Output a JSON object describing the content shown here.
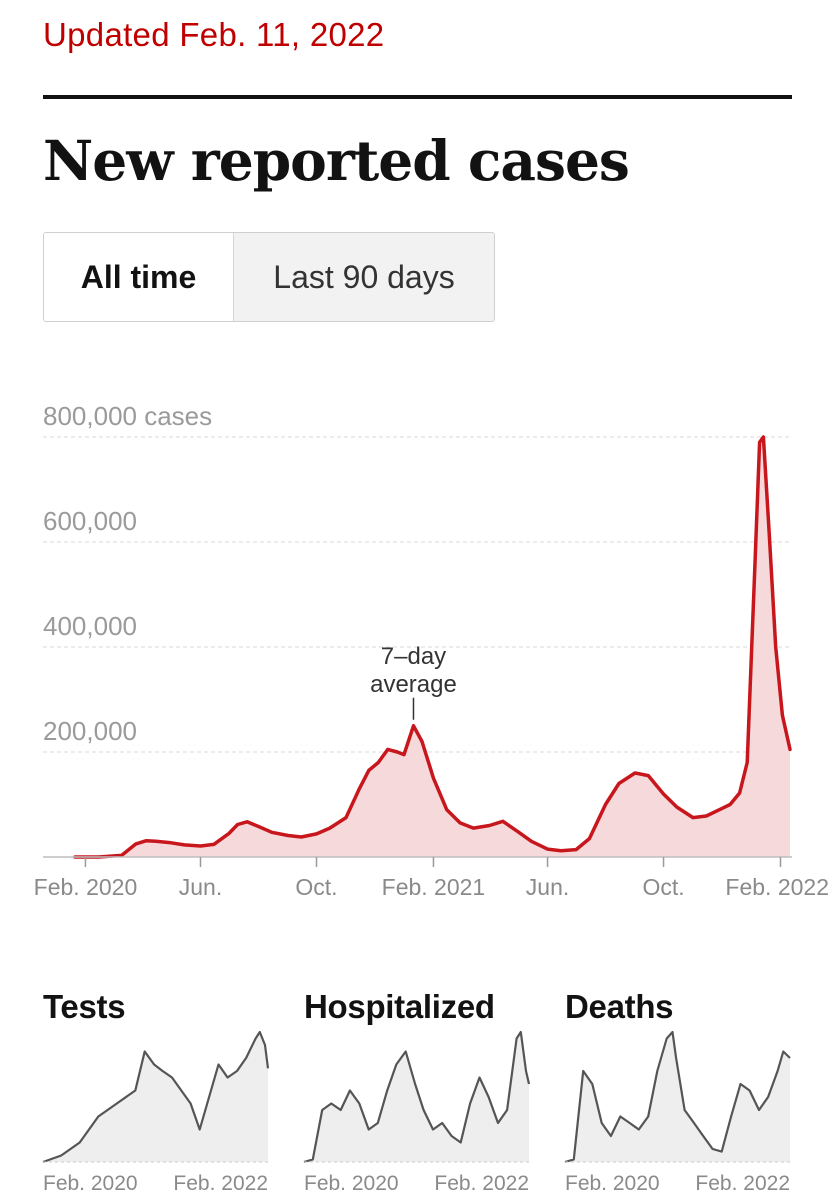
{
  "header": {
    "updated": "Updated Feb. 11, 2022",
    "title": "New reported cases"
  },
  "toggle": {
    "options": [
      {
        "label": "All time",
        "active": true
      },
      {
        "label": "Last 90 days",
        "active": false
      }
    ]
  },
  "colors": {
    "accent": "#c00000",
    "line": "#c8161d",
    "fill": "#f6d9da",
    "small_line": "#555555",
    "small_fill": "#eeeeee"
  },
  "chart_data": [
    {
      "type": "area",
      "y_unit_label": "800,000 cases",
      "y_ticks": [
        {
          "value": 200000,
          "label": "200,000"
        },
        {
          "value": 400000,
          "label": "400,000"
        },
        {
          "value": 600000,
          "label": "600,000"
        },
        {
          "value": 800000,
          "label": "800,000 cases"
        }
      ],
      "ylim": [
        0,
        800000
      ],
      "x_ticks": [
        {
          "date": "2020-02-01",
          "label": "Feb. 2020"
        },
        {
          "date": "2020-06-01",
          "label": "Jun."
        },
        {
          "date": "2020-10-01",
          "label": "Oct."
        },
        {
          "date": "2021-02-01",
          "label": "Feb. 2021"
        },
        {
          "date": "2021-06-01",
          "label": "Jun."
        },
        {
          "date": "2021-10-01",
          "label": "Oct."
        },
        {
          "date": "2022-02-01",
          "label": "Feb. 2022"
        }
      ],
      "annotation": {
        "line1": "7–day",
        "line2": "average",
        "date": "2021-01-11",
        "value": 250000
      },
      "grid": true,
      "series": [
        {
          "x": [
            "2020-01-21",
            "2020-02-15",
            "2020-03-10",
            "2020-03-25",
            "2020-04-05",
            "2020-04-15",
            "2020-05-01",
            "2020-05-15",
            "2020-06-01",
            "2020-06-15",
            "2020-07-01",
            "2020-07-10",
            "2020-07-20",
            "2020-08-01",
            "2020-08-15",
            "2020-09-01",
            "2020-09-15",
            "2020-10-01",
            "2020-10-15",
            "2020-11-01",
            "2020-11-15",
            "2020-11-25",
            "2020-12-05",
            "2020-12-15",
            "2020-12-25",
            "2021-01-01",
            "2021-01-11",
            "2021-01-20",
            "2021-02-01",
            "2021-02-15",
            "2021-03-01",
            "2021-03-15",
            "2021-04-01",
            "2021-04-15",
            "2021-05-01",
            "2021-05-15",
            "2021-06-01",
            "2021-06-15",
            "2021-07-01",
            "2021-07-15",
            "2021-08-01",
            "2021-08-15",
            "2021-09-01",
            "2021-09-15",
            "2021-10-01",
            "2021-10-15",
            "2021-11-01",
            "2021-11-15",
            "2021-12-01",
            "2021-12-10",
            "2021-12-20",
            "2021-12-28",
            "2022-01-05",
            "2022-01-10",
            "2022-01-14",
            "2022-01-20",
            "2022-01-27",
            "2022-02-03",
            "2022-02-11"
          ],
          "y": [
            0,
            0,
            3000,
            25000,
            31000,
            30000,
            27000,
            23000,
            21000,
            24000,
            45000,
            62000,
            67000,
            58000,
            47000,
            41000,
            38000,
            44000,
            55000,
            75000,
            130000,
            165000,
            180000,
            205000,
            200000,
            195000,
            250000,
            220000,
            150000,
            90000,
            65000,
            55000,
            60000,
            68000,
            48000,
            30000,
            15000,
            12000,
            14000,
            35000,
            100000,
            140000,
            160000,
            155000,
            120000,
            95000,
            75000,
            78000,
            92000,
            100000,
            122000,
            180000,
            550000,
            790000,
            800000,
            620000,
            400000,
            270000,
            205000
          ]
        }
      ]
    },
    {
      "type": "area",
      "title": "Tests",
      "x_ticks": [
        {
          "date": "2020-02-01",
          "label": "Feb. 2020"
        },
        {
          "date": "2022-02-01",
          "label": "Feb. 2022"
        }
      ],
      "x": [
        "2020-02-01",
        "2020-04-01",
        "2020-06-01",
        "2020-08-01",
        "2020-10-01",
        "2020-12-01",
        "2021-01-01",
        "2021-02-01",
        "2021-03-01",
        "2021-04-01",
        "2021-06-01",
        "2021-07-01",
        "2021-08-01",
        "2021-09-01",
        "2021-10-01",
        "2021-11-01",
        "2021-12-01",
        "2022-01-01",
        "2022-01-15",
        "2022-02-01",
        "2022-02-11"
      ],
      "values": [
        0,
        5,
        15,
        35,
        45,
        55,
        85,
        75,
        70,
        65,
        45,
        25,
        50,
        75,
        65,
        70,
        80,
        95,
        100,
        90,
        72
      ],
      "ylim": [
        0,
        100
      ]
    },
    {
      "type": "area",
      "title": "Hospitalized",
      "x_ticks": [
        {
          "date": "2020-02-01",
          "label": "Feb. 2020"
        },
        {
          "date": "2022-02-01",
          "label": "Feb. 2022"
        }
      ],
      "x": [
        "2020-02-01",
        "2020-03-01",
        "2020-04-01",
        "2020-05-01",
        "2020-06-01",
        "2020-07-01",
        "2020-08-01",
        "2020-09-01",
        "2020-10-01",
        "2020-11-01",
        "2020-12-01",
        "2021-01-01",
        "2021-02-01",
        "2021-03-01",
        "2021-04-01",
        "2021-05-01",
        "2021-06-01",
        "2021-07-01",
        "2021-08-01",
        "2021-09-01",
        "2021-10-01",
        "2021-11-01",
        "2021-12-01",
        "2022-01-01",
        "2022-01-15",
        "2022-02-01",
        "2022-02-11"
      ],
      "values": [
        0,
        2,
        40,
        45,
        40,
        55,
        45,
        25,
        30,
        55,
        75,
        85,
        60,
        40,
        25,
        30,
        20,
        15,
        45,
        65,
        50,
        30,
        40,
        95,
        100,
        70,
        60
      ],
      "ylim": [
        0,
        100
      ]
    },
    {
      "type": "area",
      "title": "Deaths",
      "x_ticks": [
        {
          "date": "2020-02-01",
          "label": "Feb. 2020"
        },
        {
          "date": "2022-02-01",
          "label": "Feb. 2022"
        }
      ],
      "x": [
        "2020-02-01",
        "2020-03-01",
        "2020-04-01",
        "2020-05-01",
        "2020-06-01",
        "2020-07-01",
        "2020-08-01",
        "2020-09-01",
        "2020-10-01",
        "2020-11-01",
        "2020-12-01",
        "2021-01-01",
        "2021-01-20",
        "2021-02-01",
        "2021-03-01",
        "2021-04-01",
        "2021-05-01",
        "2021-06-01",
        "2021-07-01",
        "2021-08-01",
        "2021-09-01",
        "2021-10-01",
        "2021-11-01",
        "2021-12-01",
        "2022-01-01",
        "2022-01-20",
        "2022-02-11"
      ],
      "values": [
        0,
        2,
        70,
        60,
        30,
        20,
        35,
        30,
        25,
        35,
        70,
        95,
        100,
        80,
        40,
        30,
        20,
        10,
        8,
        35,
        60,
        55,
        40,
        50,
        70,
        85,
        80
      ],
      "ylim": [
        0,
        100
      ]
    }
  ]
}
